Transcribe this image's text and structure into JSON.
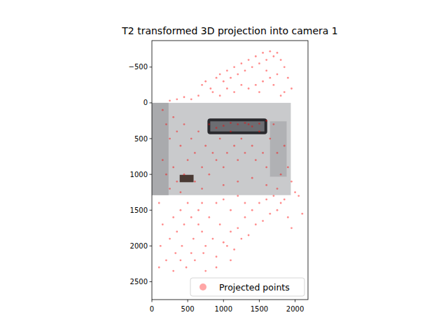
{
  "chart_data": {
    "type": "scatter",
    "title": "T2 transformed 3D projection into camera 1",
    "xlim": [
      0,
      2180
    ],
    "ylim": [
      2750,
      -870
    ],
    "xticks": [
      0,
      500,
      1000,
      1500,
      2000
    ],
    "yticks": [
      -500,
      0,
      500,
      1000,
      1500,
      2000,
      2500
    ],
    "legend": "lower right",
    "grid": false,
    "image_extent": [
      0,
      1940,
      1290,
      0
    ],
    "series": [
      {
        "name": "Projected points",
        "color": "#ff0000",
        "marker": "circle",
        "x": [
          700,
          750,
          820,
          900,
          950,
          1000,
          1050,
          1100,
          1150,
          1200,
          1250,
          1300,
          1350,
          1400,
          1450,
          1500,
          1550,
          1600,
          1650,
          1700,
          1750,
          1800,
          1850,
          1900,
          1950,
          1600,
          1650,
          1700,
          1550,
          1450,
          1350,
          1250,
          1150,
          1050,
          950,
          850,
          650,
          550,
          450,
          350,
          250,
          1750,
          1850,
          1800,
          1500,
          150,
          200,
          250,
          300,
          350,
          400,
          450,
          500,
          550,
          600,
          650,
          700,
          750,
          800,
          850,
          900,
          950,
          1000,
          1050,
          1100,
          1150,
          1200,
          1250,
          1300,
          1350,
          1400,
          1450,
          1500,
          1550,
          1600,
          1650,
          1700,
          1750,
          1800,
          1850,
          1900,
          800,
          900,
          1000,
          1100,
          1200,
          1300,
          1400,
          1500,
          1600,
          300,
          350,
          250,
          450,
          600,
          700,
          400,
          150,
          200,
          1000,
          1200,
          1400,
          1600,
          1750,
          1950,
          2000,
          100,
          150,
          120,
          100,
          200,
          250,
          300,
          350,
          330,
          400,
          450,
          420,
          480,
          500,
          550,
          580,
          600,
          650,
          700,
          720,
          750,
          800,
          850,
          900,
          950,
          1000,
          1050,
          1100,
          1150,
          1200,
          1250,
          1300,
          1350,
          1400,
          1450,
          1500,
          1550,
          1600,
          1650,
          1700,
          1750,
          1800,
          1850,
          1900,
          2050,
          2100,
          1950,
          1300,
          1100,
          900,
          700,
          1200,
          1000,
          750,
          550,
          1100,
          400,
          300,
          900,
          650
        ],
        "values": [
          -250,
          -300,
          -200,
          -350,
          -400,
          -300,
          -450,
          -350,
          -500,
          -400,
          -550,
          -450,
          -600,
          -500,
          -650,
          -550,
          -700,
          -600,
          -720,
          -650,
          -700,
          -600,
          -500,
          -350,
          -200,
          -450,
          -350,
          -250,
          -300,
          -250,
          -200,
          -250,
          -150,
          -200,
          -100,
          -150,
          -100,
          -50,
          -80,
          -50,
          -30,
          -400,
          -150,
          -100,
          -150,
          100,
          300,
          500,
          200,
          400,
          600,
          300,
          800,
          500,
          700,
          400,
          900,
          600,
          1000,
          700,
          800,
          500,
          900,
          700,
          400,
          600,
          800,
          500,
          700,
          300,
          600,
          800,
          400,
          700,
          900,
          500,
          300,
          700,
          1000,
          600,
          900,
          300,
          350,
          320,
          280,
          300,
          280,
          330,
          290,
          250,
          900,
          1100,
          1200,
          1000,
          1100,
          1200,
          1250,
          800,
          1000,
          1150,
          1100,
          1050,
          1150,
          1200,
          1100,
          1250,
          1400,
          1700,
          2000,
          2300,
          2200,
          1900,
          1600,
          1800,
          2100,
          1500,
          1700,
          2000,
          2300,
          1400,
          1600,
          1900,
          2200,
          1500,
          1800,
          2100,
          2350,
          1600,
          1900,
          2150,
          1700,
          1950,
          2000,
          1800,
          2050,
          1750,
          1900,
          1600,
          1850,
          1500,
          1700,
          1400,
          1650,
          1350,
          1550,
          1300,
          1500,
          1400,
          1350,
          1600,
          1300,
          1550,
          1750,
          1400,
          1500,
          1400,
          1400,
          1300,
          1350,
          2000,
          2100,
          2200,
          2200,
          2350,
          2300,
          1700
        ]
      }
    ]
  }
}
